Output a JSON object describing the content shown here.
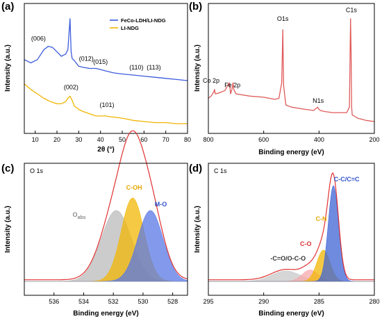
{
  "figure": {
    "panels": [
      {
        "id": "a",
        "label": "(a)"
      },
      {
        "id": "b",
        "label": "(b)"
      },
      {
        "id": "c",
        "label": "(c)"
      },
      {
        "id": "d",
        "label": "(d)"
      }
    ]
  },
  "chart_data": [
    {
      "panel": "(a)",
      "type": "line",
      "title": "",
      "xlabel": "2θ (°)",
      "ylabel": "Intensity (a.u.)",
      "xlim": [
        5,
        80
      ],
      "xticks": [
        "10",
        "20",
        "30",
        "40",
        "50",
        "60",
        "70",
        "80"
      ],
      "xtick_values": [
        10,
        20,
        30,
        40,
        50,
        60,
        70,
        80
      ],
      "legend_position": "top-right",
      "series": [
        {
          "name": "FeCo-LDH/LI-NDG",
          "color": "#3b5bdb",
          "x": [
            5,
            8,
            11,
            14,
            16,
            18,
            20,
            22,
            24,
            25,
            25.5,
            26,
            26.5,
            27,
            28,
            30,
            32,
            35,
            38,
            42,
            46,
            50,
            55,
            60,
            65,
            70,
            75,
            80
          ],
          "y": [
            63,
            60,
            63,
            72,
            75,
            74,
            70,
            66,
            68,
            72,
            85,
            100,
            70,
            64,
            62,
            57,
            56,
            55,
            55,
            53,
            51,
            50,
            49,
            48,
            47,
            46,
            45,
            44
          ]
        },
        {
          "name": "LI-NDG",
          "color": "#f0b400",
          "x": [
            5,
            8,
            11,
            14,
            17,
            20,
            22,
            24,
            25,
            26,
            27,
            28,
            30,
            32,
            35,
            38,
            42,
            46,
            50,
            55,
            60,
            65,
            70,
            75,
            80
          ],
          "y": [
            41,
            36,
            32,
            28,
            25,
            23,
            23,
            25,
            28,
            30,
            26,
            21,
            18,
            16,
            14,
            12,
            12,
            11,
            10,
            8,
            7,
            6,
            6,
            5,
            5
          ]
        }
      ],
      "annotations": [
        {
          "text": "(006)",
          "x": 11.5,
          "y": 80
        },
        {
          "text": "(012)",
          "x": 33.5,
          "y": 62
        },
        {
          "text": "(015)",
          "x": 40,
          "y": 59
        },
        {
          "text": "(110)",
          "x": 56.5,
          "y": 54
        },
        {
          "text": "(113)",
          "x": 64.5,
          "y": 54
        },
        {
          "text": "(002)",
          "x": 26.5,
          "y": 36
        },
        {
          "text": "(101)",
          "x": 43,
          "y": 20
        }
      ]
    },
    {
      "panel": "(b)",
      "type": "line",
      "title": "",
      "xlabel": "Binding energy (eV)",
      "ylabel": "Intensity (a.u.)",
      "xlim": [
        800,
        200
      ],
      "xticks": [
        "800",
        "600",
        "400",
        "200"
      ],
      "xtick_values": [
        800,
        600,
        400,
        200
      ],
      "series": [
        {
          "name": "",
          "color": "#e05a5a",
          "x": [
            800,
            790,
            785,
            780,
            778,
            775,
            760,
            740,
            725,
            722,
            720,
            715,
            711,
            708,
            700,
            650,
            600,
            560,
            545,
            535,
            531,
            528,
            520,
            500,
            450,
            420,
            405,
            400,
            395,
            380,
            350,
            300,
            290,
            286,
            284,
            282,
            280,
            260,
            230,
            200
          ],
          "y": [
            28,
            30,
            32,
            34,
            36,
            32,
            33,
            35,
            42,
            38,
            32,
            36,
            42,
            36,
            32,
            30,
            29,
            27,
            28,
            42,
            90,
            40,
            22,
            20,
            18,
            17,
            20,
            18,
            17,
            16,
            15,
            15,
            20,
            100,
            70,
            20,
            13,
            10,
            8,
            7
          ]
        }
      ],
      "annotations": [
        {
          "text": "Co 2p",
          "x": 790,
          "y": 42
        },
        {
          "text": "Fe 2p",
          "x": 713,
          "y": 38
        },
        {
          "text": "O1s",
          "x": 531,
          "y": 98
        },
        {
          "text": "N1s",
          "x": 403,
          "y": 24
        },
        {
          "text": "C1s",
          "x": 283,
          "y": 106
        }
      ]
    },
    {
      "panel": "(c)",
      "type": "area",
      "title": "O 1s",
      "xlabel": "Binding energy (eV)",
      "ylabel": "Intensity (a.u.)",
      "xlim": [
        538,
        527
      ],
      "xticks": [
        "536",
        "534",
        "532",
        "530",
        "528"
      ],
      "xtick_values": [
        536,
        534,
        532,
        530,
        528
      ],
      "peaks": [
        {
          "name": "Oabs",
          "center": 531.8,
          "height": 68,
          "fwhm": 2.4,
          "color": "#bbbbbb"
        },
        {
          "name": "C-OH",
          "center": 530.7,
          "height": 80,
          "fwhm": 1.8,
          "color": "#f2b705"
        },
        {
          "name": "M-O",
          "center": 529.5,
          "height": 68,
          "fwhm": 2.0,
          "color": "#5a78e6"
        }
      ],
      "envelope_color": "#e03030",
      "annotations": [
        {
          "text": "O",
          "sub": "abs",
          "x": 534.3,
          "y": 62,
          "color": "#8c8c8c"
        },
        {
          "text": "C-OH",
          "x": 530.6,
          "y": 88,
          "color": "#e6a700"
        },
        {
          "text": "M-O",
          "x": 528.8,
          "y": 72,
          "color": "#2f52cc"
        }
      ]
    },
    {
      "panel": "(d)",
      "type": "area",
      "title": "C 1s",
      "xlabel": "Binding energy (eV)",
      "ylabel": "Intensity (a.u.)",
      "xlim": [
        295,
        280
      ],
      "xticks": [
        "295",
        "290",
        "285",
        "280"
      ],
      "xtick_values": [
        295,
        290,
        285,
        280
      ],
      "peaks": [
        {
          "name": "-C=O/O-C-O",
          "center": 288.0,
          "height": 10,
          "fwhm": 3.0,
          "color": "#c8c8c8"
        },
        {
          "name": "C-O",
          "center": 285.8,
          "height": 11,
          "fwhm": 1.7,
          "color": "#f7a9ab"
        },
        {
          "name": "C-N",
          "center": 284.6,
          "height": 30,
          "fwhm": 1.4,
          "color": "#f2b705"
        },
        {
          "name": "C-C/C=C",
          "center": 283.7,
          "height": 92,
          "fwhm": 1.1,
          "color": "#3d64d6"
        }
      ],
      "envelope_color": "#e03030",
      "annotations": [
        {
          "text": "-C=O/O-C-O",
          "x": 287.8,
          "y": 20,
          "color": "#333333"
        },
        {
          "text": "C-O",
          "x": 286.2,
          "y": 34,
          "color": "#e03030"
        },
        {
          "text": "C-N",
          "x": 284.8,
          "y": 58,
          "color": "#e6a700"
        },
        {
          "text": "C-C/C=C",
          "x": 282.5,
          "y": 96,
          "color": "#2f52cc"
        }
      ]
    }
  ]
}
